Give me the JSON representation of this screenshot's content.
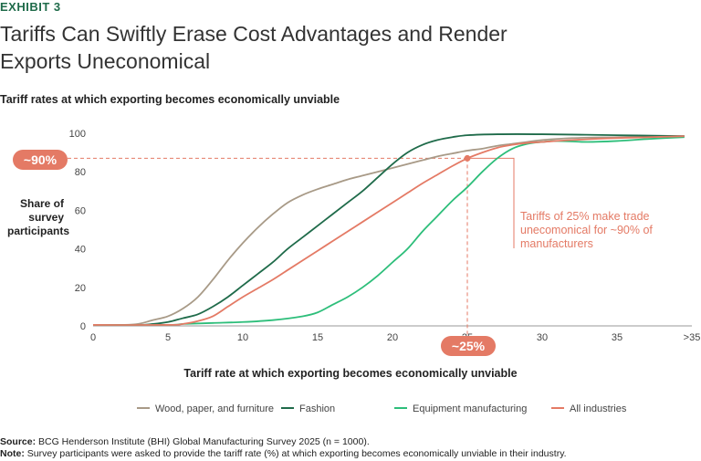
{
  "header": {
    "exhibit": "EXHIBIT 3",
    "title_line1": "Tariffs Can Swiftly Erase Cost Advantages and Render",
    "title_line2": "Exports Uneconomical"
  },
  "chart_data": {
    "type": "line",
    "title": "Tariff rates at which exporting becomes economically unviable",
    "xlabel": "Tariff rate at which exporting becomes economically unviable",
    "ylabel": "Share of survey participants",
    "ylabel_lines": [
      "Share of",
      "survey",
      "participants"
    ],
    "xlim": [
      0,
      40
    ],
    "ylim": [
      0,
      100
    ],
    "x_ticks": [
      "0",
      "5",
      "10",
      "15",
      "20",
      "25",
      "30",
      "35",
      ">35"
    ],
    "x_tick_values": [
      0,
      5,
      10,
      15,
      20,
      25,
      30,
      35,
      40
    ],
    "y_ticks": [
      "0",
      "20",
      "40",
      "60",
      "80",
      "100"
    ],
    "y_tick_values": [
      0,
      20,
      40,
      60,
      80,
      100
    ],
    "grid": false,
    "legend_position": "bottom",
    "series": [
      {
        "name": "Wood, paper, and furniture",
        "color": "#a89a87",
        "points": [
          [
            0,
            0.5
          ],
          [
            2,
            0.5
          ],
          [
            3,
            1
          ],
          [
            4,
            3
          ],
          [
            5,
            5
          ],
          [
            6,
            9
          ],
          [
            7,
            15
          ],
          [
            8,
            24
          ],
          [
            9,
            34
          ],
          [
            10,
            43
          ],
          [
            11,
            51
          ],
          [
            12,
            58
          ],
          [
            13,
            64
          ],
          [
            14,
            68
          ],
          [
            15,
            71
          ],
          [
            16,
            73.5
          ],
          [
            17,
            76
          ],
          [
            18,
            78
          ],
          [
            19,
            80
          ],
          [
            20,
            82
          ],
          [
            21,
            84
          ],
          [
            22,
            86
          ],
          [
            23,
            88
          ],
          [
            24,
            89.5
          ],
          [
            25,
            91
          ],
          [
            26,
            92
          ],
          [
            27,
            93.5
          ],
          [
            28,
            94.5
          ],
          [
            29,
            95.5
          ],
          [
            30,
            96.5
          ],
          [
            32,
            97.5
          ],
          [
            35,
            98
          ],
          [
            38,
            98.5
          ],
          [
            39.5,
            98.5
          ]
        ]
      },
      {
        "name": "Fashion",
        "color": "#1f6b4a",
        "points": [
          [
            0,
            0.5
          ],
          [
            3,
            0.5
          ],
          [
            4,
            1
          ],
          [
            5,
            2
          ],
          [
            6,
            4
          ],
          [
            7,
            6
          ],
          [
            8,
            10
          ],
          [
            9,
            15
          ],
          [
            10,
            21
          ],
          [
            11,
            27
          ],
          [
            12,
            33
          ],
          [
            13,
            40
          ],
          [
            14,
            46
          ],
          [
            15,
            52
          ],
          [
            16,
            58
          ],
          [
            17,
            64
          ],
          [
            18,
            70
          ],
          [
            19,
            77
          ],
          [
            20,
            84
          ],
          [
            21,
            90
          ],
          [
            22,
            94
          ],
          [
            23,
            96.5
          ],
          [
            24,
            98
          ],
          [
            25,
            99
          ],
          [
            27,
            99.5
          ],
          [
            30,
            99.5
          ],
          [
            35,
            99
          ],
          [
            39.5,
            98.5
          ]
        ]
      },
      {
        "name": "Equipment manufacturing",
        "color": "#2dbe7a",
        "points": [
          [
            0,
            0.5
          ],
          [
            5,
            0.5
          ],
          [
            6,
            1
          ],
          [
            8,
            1.5
          ],
          [
            10,
            2
          ],
          [
            12,
            3
          ],
          [
            14,
            5
          ],
          [
            15,
            7
          ],
          [
            16,
            11
          ],
          [
            17,
            15
          ],
          [
            18,
            20
          ],
          [
            19,
            26
          ],
          [
            20,
            33
          ],
          [
            21,
            40
          ],
          [
            22,
            49
          ],
          [
            23,
            57
          ],
          [
            24,
            65
          ],
          [
            25,
            72
          ],
          [
            26,
            80
          ],
          [
            27,
            87
          ],
          [
            28,
            92
          ],
          [
            29,
            94.5
          ],
          [
            30,
            95.5
          ],
          [
            31,
            96
          ],
          [
            33,
            95.5
          ],
          [
            35,
            96
          ],
          [
            37,
            97
          ],
          [
            39.5,
            98
          ]
        ]
      },
      {
        "name": "All industries",
        "color": "#e47a65",
        "points": [
          [
            0,
            0.5
          ],
          [
            5,
            0.5
          ],
          [
            6,
            1
          ],
          [
            7,
            2.5
          ],
          [
            8,
            5
          ],
          [
            9,
            10
          ],
          [
            10,
            15
          ],
          [
            11,
            19.5
          ],
          [
            12,
            24
          ],
          [
            13,
            29
          ],
          [
            14,
            34
          ],
          [
            15,
            39
          ],
          [
            16,
            44
          ],
          [
            17,
            49
          ],
          [
            18,
            54
          ],
          [
            19,
            59
          ],
          [
            20,
            64
          ],
          [
            21,
            69
          ],
          [
            22,
            74
          ],
          [
            23,
            78.5
          ],
          [
            24,
            83
          ],
          [
            25,
            87
          ],
          [
            26,
            90
          ],
          [
            27,
            92.5
          ],
          [
            28,
            94
          ],
          [
            29,
            95
          ],
          [
            30,
            95.5
          ],
          [
            32,
            96.5
          ],
          [
            35,
            97.5
          ],
          [
            39.5,
            98.5
          ]
        ]
      }
    ],
    "highlight": {
      "x": 25,
      "y": 87,
      "x_label": "~25%",
      "y_label": "~90%",
      "annotation": "Tariffs of 25% make trade unecomonical for ~90% of manufacturers",
      "annotation_lines": [
        "Tariffs of 25% make trade",
        "unecomonical for ~90% of",
        "manufacturers"
      ],
      "color": "#e47a65"
    }
  },
  "footer": {
    "source_label": "Source:",
    "source_text": " BCG Henderson Institute (BHI) Global Manufacturing Survey 2025 (n = 1000).",
    "note_label": "Note:",
    "note_text": " Survey participants were asked to provide the tariff rate (%) at which exporting becomes economically unviable in their industry."
  }
}
